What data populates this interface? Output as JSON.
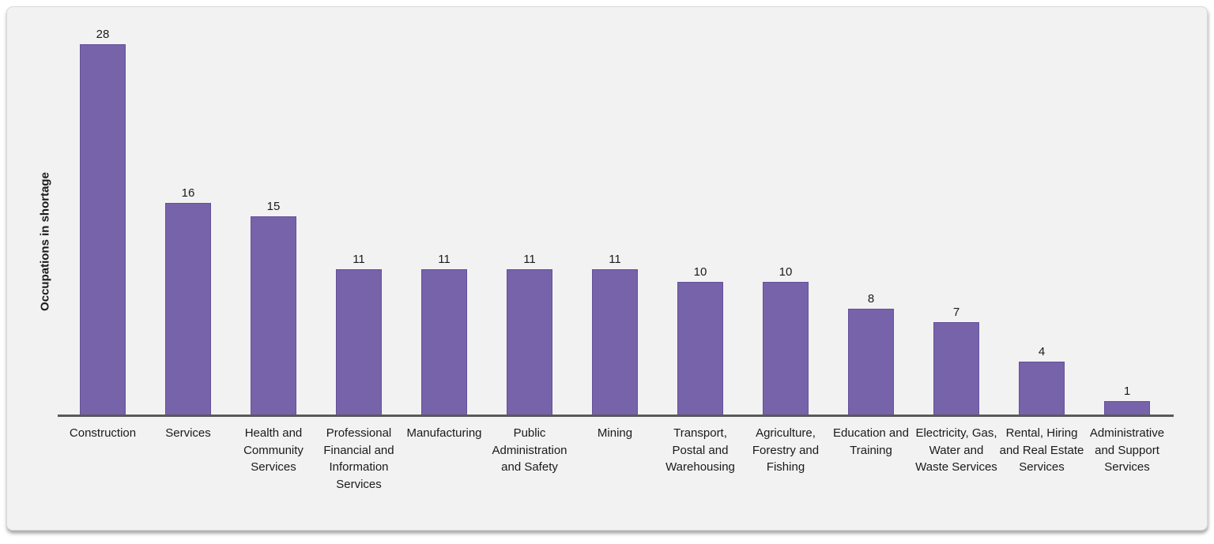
{
  "page": {
    "background": "#ffffff"
  },
  "card": {
    "background": "#f2f2f2",
    "border_color": "#d9d9d9"
  },
  "chart_data": {
    "type": "bar",
    "title": "",
    "xlabel": "",
    "ylabel": "Occupations in shortage",
    "categories": [
      "Construction",
      "Services",
      "Health and Community Services",
      "Professional Financial and Information Services",
      "Manufacturing",
      "Public Administration and Safety",
      "Mining",
      "Transport, Postal and Warehousing",
      "Agriculture, Forestry and Fishing",
      "Education and Training",
      "Electricity, Gas, Water and Waste Services",
      "Rental, Hiring and Real Estate Services",
      "Administrative and Support Services"
    ],
    "values": [
      28,
      16,
      15,
      11,
      11,
      11,
      11,
      10,
      10,
      8,
      7,
      4,
      1
    ],
    "ylim": [
      0,
      30
    ],
    "grid": false,
    "legend_position": "none",
    "value_labels_shown": true,
    "bar_color": "#7663aa",
    "bar_border_color": "#65519a",
    "axis_color": "#595959",
    "text_color": "#1a1a1a"
  }
}
